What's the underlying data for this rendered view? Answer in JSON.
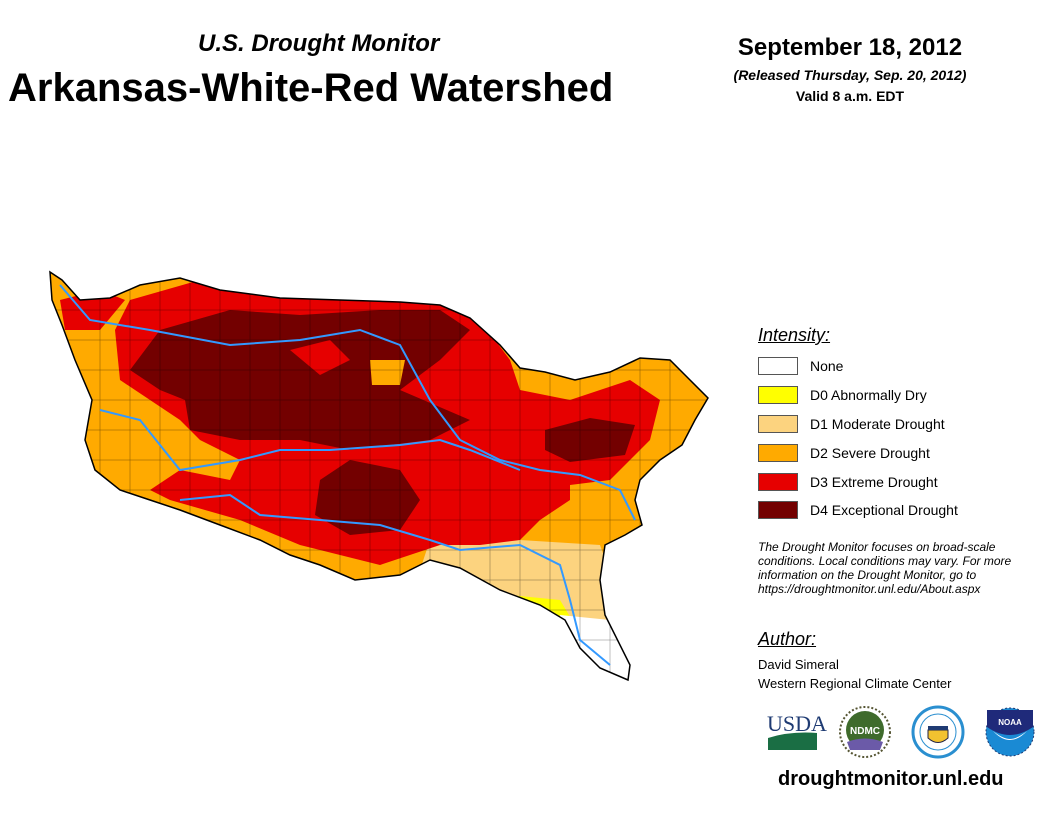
{
  "header": {
    "subtitle": "U.S. Drought Monitor",
    "title": "Arkansas-White-Red Watershed",
    "date": "September 18, 2012",
    "released": "(Released Thursday, Sep. 20, 2012)",
    "valid": "Valid 8 a.m. EDT"
  },
  "legend": {
    "title": "Intensity:",
    "items": [
      {
        "label": "None",
        "color": "#ffffff"
      },
      {
        "label": "D0 Abnormally Dry",
        "color": "#ffff00"
      },
      {
        "label": "D1 Moderate Drought",
        "color": "#fcd37f"
      },
      {
        "label": "D2 Severe Drought",
        "color": "#ffaa00"
      },
      {
        "label": "D3 Extreme Drought",
        "color": "#e60000"
      },
      {
        "label": "D4 Exceptional Drought",
        "color": "#730000"
      }
    ],
    "note": "The Drought Monitor focuses on broad-scale conditions. Local conditions may vary. For more information on the Drought Monitor, go to https://droughtmonitor.unl.edu/About.aspx"
  },
  "author": {
    "title": "Author:",
    "name": "David Simeral",
    "org": "Western Regional Climate Center"
  },
  "logos": [
    {
      "name": "USDA",
      "text": "USDA"
    },
    {
      "name": "NDMC",
      "text": "NDMC"
    },
    {
      "name": "Department of Commerce",
      "text": ""
    },
    {
      "name": "NOAA",
      "text": "NOAA"
    }
  ],
  "footer": {
    "site": "droughtmonitor.unl.edu"
  },
  "colors": {
    "river": "#3399ff",
    "border": "#000000"
  }
}
